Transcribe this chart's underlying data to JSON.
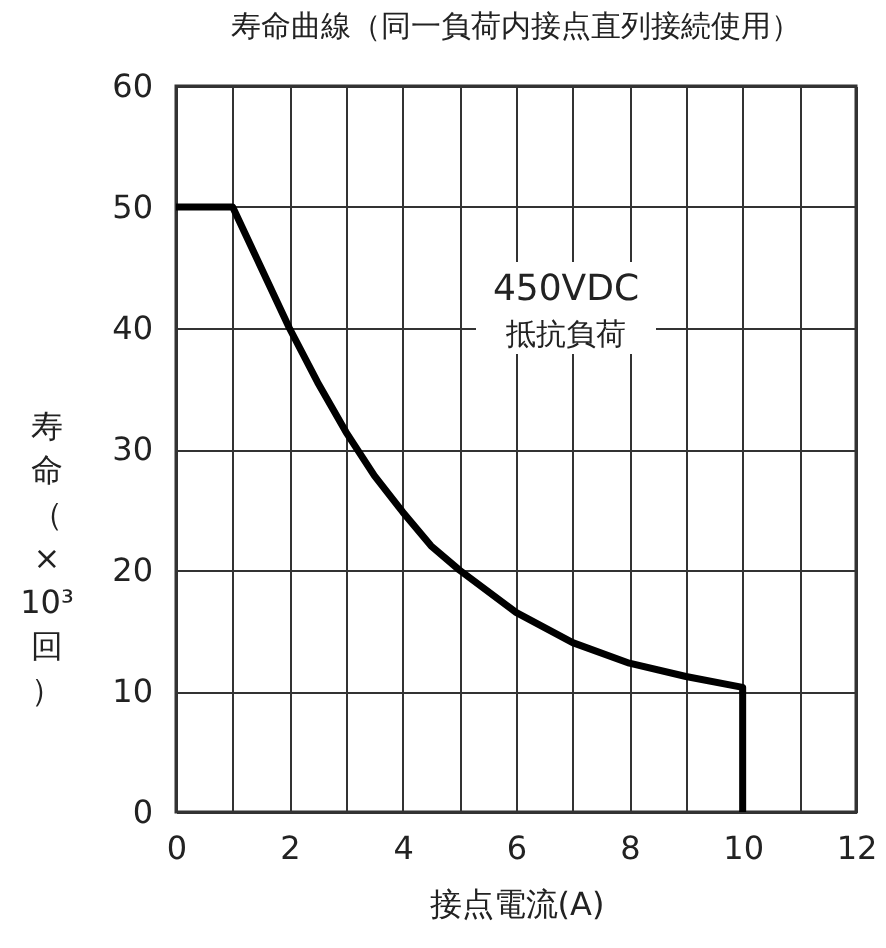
{
  "chart_data": {
    "type": "line",
    "title": "寿命曲線（同一負荷内接点直列接続使用）",
    "xlabel": "接点電流(A)",
    "ylabel": "寿命（×10³回）",
    "annotations": [
      "450VDC",
      "抵抗負荷"
    ],
    "x": [
      0,
      1,
      1.5,
      2,
      2.5,
      3,
      3.5,
      4,
      4.5,
      5,
      6,
      7,
      8,
      9,
      10,
      10
    ],
    "series": [
      {
        "color": "#000000",
        "values": [
          50,
          50,
          45,
          40,
          35.5,
          31.4,
          27.8,
          24.8,
          22,
          20,
          16.5,
          14,
          12.3,
          11.2,
          10.3,
          0
        ]
      }
    ],
    "xlim": [
      0,
      12
    ],
    "ylim": [
      0,
      60
    ],
    "xticks": [
      0,
      {
        "value": 1,
        "label": null
      },
      2,
      {
        "value": 3,
        "label": null
      },
      4,
      {
        "value": 5,
        "label": null
      },
      6,
      {
        "value": 7,
        "label": null
      },
      8,
      {
        "value": 9,
        "label": null
      },
      10,
      {
        "value": 11,
        "label": null
      },
      12
    ],
    "yticks": [
      0,
      10,
      20,
      30,
      40,
      50,
      60
    ],
    "grid": true,
    "marker": "none",
    "line_style": "solid"
  }
}
